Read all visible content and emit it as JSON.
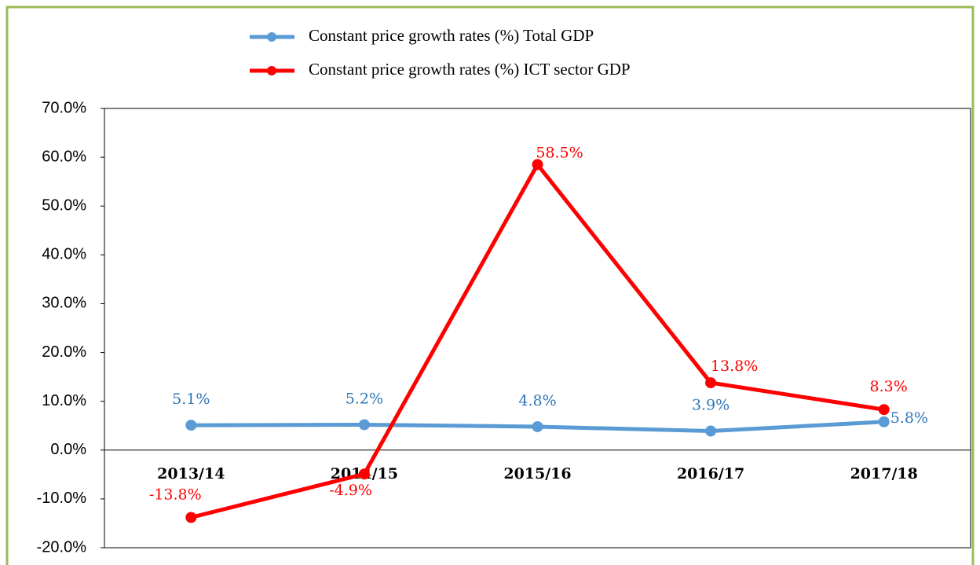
{
  "chart_data": {
    "type": "line",
    "categories": [
      "2013/14",
      "2014/15",
      "2015/16",
      "2016/17",
      "2017/18"
    ],
    "series": [
      {
        "name": "Constant price growth rates (%) Total GDP",
        "color": "#5b9bd5",
        "values": [
          5.1,
          5.2,
          4.8,
          3.9,
          5.8
        ],
        "value_labels": [
          "5.1%",
          "5.2%",
          "4.8%",
          "3.9%",
          "5.8%"
        ]
      },
      {
        "name": "Constant price growth rates (%) ICT sector GDP",
        "color": "#ff0000",
        "values": [
          -13.8,
          -4.9,
          58.5,
          13.8,
          8.3
        ],
        "value_labels": [
          "-13.8%",
          "-4.9%",
          "58.5%",
          "13.8%",
          "8.3%"
        ]
      }
    ],
    "ylim": [
      -20,
      70
    ],
    "yticks": [
      {
        "value": -20,
        "label": "-20.0%"
      },
      {
        "value": -10,
        "label": "-10.0%"
      },
      {
        "value": 0,
        "label": "0.0%"
      },
      {
        "value": 10,
        "label": "10.0%"
      },
      {
        "value": 20,
        "label": "20.0%"
      },
      {
        "value": 30,
        "label": "30.0%"
      },
      {
        "value": 40,
        "label": "40.0%"
      },
      {
        "value": 50,
        "label": "50.0%"
      },
      {
        "value": 60,
        "label": "60.0%"
      },
      {
        "value": 70,
        "label": "70.0%"
      }
    ],
    "legend": "top",
    "grid": false
  }
}
